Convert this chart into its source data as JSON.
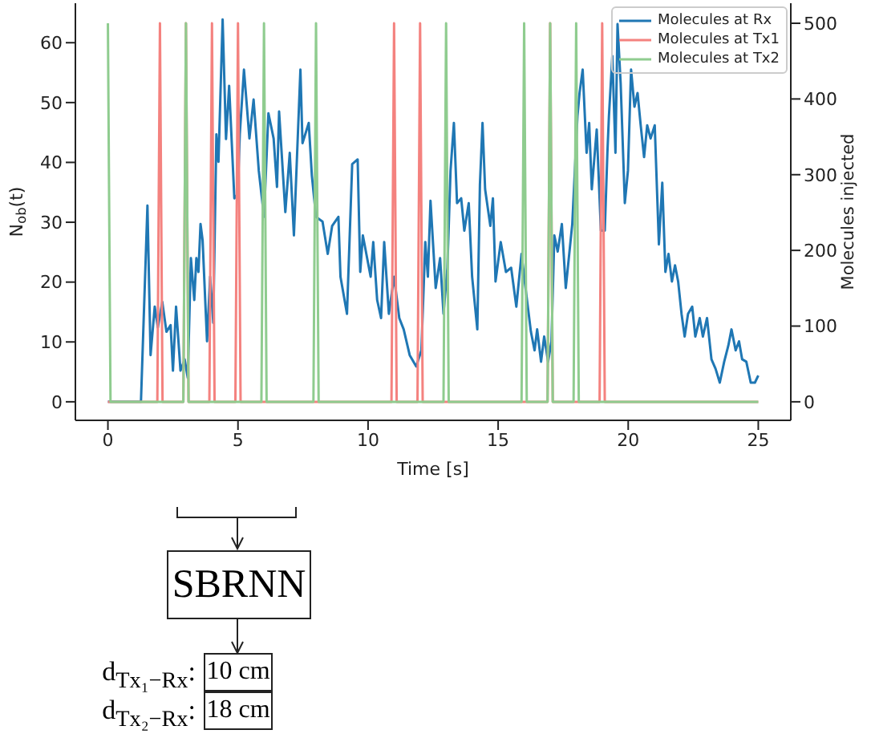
{
  "chart_data": {
    "type": "line",
    "xlabel": "Time [s]",
    "ylabel": "N$_{ob}$(t)",
    "y2label": "Molecules injected",
    "xlim": [
      -1.25,
      26.25
    ],
    "xticks": [
      0,
      5,
      10,
      15,
      20,
      25
    ],
    "ylim": [
      -3.1,
      66.6
    ],
    "yticks": [
      0,
      10,
      20,
      30,
      40,
      50,
      60
    ],
    "y2lim": [
      -24.5,
      526.5
    ],
    "y2ticks": [
      0,
      100,
      200,
      300,
      400,
      500
    ],
    "grid": false,
    "legend": "top right",
    "marker": "none",
    "line_style": "solid",
    "series": [
      {
        "name": "Molecules at Rx",
        "color": "#1f77b4",
        "x": [
          0,
          1.27,
          1.52,
          1.64,
          1.8,
          1.92,
          2.09,
          2.25,
          2.41,
          2.5,
          2.62,
          2.79,
          2.95,
          3.07,
          3.19,
          3.32,
          3.4,
          3.48,
          3.56,
          3.64,
          3.81,
          3.93,
          4.05,
          4.17,
          4.25,
          4.41,
          4.54,
          4.66,
          4.86,
          4.99,
          5.07,
          5.23,
          5.44,
          5.6,
          5.8,
          6.0,
          6.17,
          6.37,
          6.5,
          6.58,
          6.82,
          6.99,
          7.15,
          7.4,
          7.48,
          7.72,
          7.84,
          8.0,
          8.25,
          8.45,
          8.62,
          8.86,
          8.94,
          9.19,
          9.39,
          9.6,
          9.7,
          9.8,
          10.1,
          10.2,
          10.35,
          10.5,
          10.62,
          10.8,
          11.0,
          11.2,
          11.37,
          11.6,
          11.85,
          12.05,
          12.2,
          12.3,
          12.4,
          12.6,
          12.77,
          12.9,
          13.05,
          13.17,
          13.3,
          13.42,
          13.58,
          13.7,
          13.87,
          14.0,
          14.2,
          14.3,
          14.4,
          14.5,
          14.7,
          14.8,
          14.9,
          15.1,
          15.3,
          15.5,
          15.7,
          15.9,
          16.0,
          16.26,
          16.4,
          16.5,
          16.65,
          16.77,
          16.92,
          17.05,
          17.16,
          17.29,
          17.45,
          17.6,
          17.85,
          18.05,
          18.13,
          18.25,
          18.4,
          18.5,
          18.6,
          18.79,
          18.95,
          19.1,
          19.2,
          19.26,
          19.39,
          19.51,
          19.59,
          19.71,
          19.87,
          19.99,
          20.11,
          20.24,
          20.36,
          20.48,
          20.61,
          20.73,
          20.86,
          21.02,
          21.18,
          21.31,
          21.43,
          21.55,
          21.68,
          21.8,
          21.92,
          22.05,
          22.17,
          22.3,
          22.46,
          22.58,
          22.75,
          22.87,
          23.03,
          23.2,
          23.36,
          23.52,
          23.69,
          23.85,
          23.97,
          24.13,
          24.26,
          24.38,
          24.54,
          24.71,
          24.87,
          25.0
        ],
        "values": [
          0,
          0,
          32.8,
          7.8,
          15.9,
          12.4,
          16.7,
          11.7,
          12.8,
          5.2,
          15.9,
          5.2,
          7.1,
          4.0,
          24,
          17,
          24,
          21.7,
          29.7,
          27,
          10.1,
          20.9,
          13.2,
          44.7,
          40.1,
          63.9,
          43.9,
          52.8,
          34,
          34.7,
          44.7,
          55.5,
          44,
          50.5,
          38.6,
          30.9,
          48.2,
          44,
          35.9,
          48.5,
          31.7,
          41.6,
          27.8,
          55.5,
          43.2,
          46.6,
          37.8,
          30.9,
          30.1,
          24.7,
          29.4,
          30.9,
          20.9,
          14.7,
          39.7,
          40.5,
          21.7,
          27.8,
          20.9,
          26.7,
          17,
          14,
          26.7,
          14.7,
          20.9,
          14,
          12.1,
          7.8,
          5.9,
          8.6,
          26.7,
          20.9,
          33.6,
          19,
          24,
          14.7,
          22.4,
          38.6,
          46.6,
          33.2,
          34,
          28.6,
          33.2,
          20.9,
          12.1,
          36.3,
          46.6,
          35.5,
          29.4,
          34,
          20.1,
          26.7,
          21.7,
          22.4,
          15.9,
          24.7,
          20.9,
          11.7,
          8.6,
          12.1,
          6.7,
          10.9,
          6.7,
          10.1,
          27.8,
          25.1,
          29.7,
          19,
          29.7,
          47.8,
          51.6,
          55.5,
          41.6,
          46.6,
          35.5,
          45.5,
          28.6,
          28.6,
          41.6,
          47.8,
          57.8,
          41.6,
          63.1,
          53.2,
          33.2,
          38.6,
          55.5,
          49.3,
          51.6,
          46.2,
          40.9,
          46.2,
          44,
          46.2,
          26.3,
          36.6,
          21.7,
          24.7,
          20.1,
          22.8,
          20.1,
          14.7,
          10.9,
          14.7,
          15.9,
          10.9,
          14,
          10.9,
          14,
          7.1,
          5.5,
          3.2,
          6.7,
          9.4,
          12.1,
          8.6,
          10.1,
          7.1,
          6.7,
          3.2,
          3.2,
          4.4
        ]
      },
      {
        "name": "Molecules at Tx1",
        "color": "#f4827f",
        "axis": "y2",
        "x": [
          0,
          1.9,
          2,
          2.1,
          2.9,
          3,
          3.1,
          3.9,
          4,
          4.1,
          4.9,
          5,
          5.1,
          10.9,
          11,
          11.1,
          11.9,
          12,
          12.1,
          16.9,
          17,
          17.1,
          18.9,
          19,
          19.1,
          25
        ],
        "values": [
          0,
          0,
          500,
          0,
          0,
          500,
          0,
          0,
          500,
          0,
          0,
          500,
          0,
          0,
          500,
          0,
          0,
          500,
          0,
          0,
          500,
          0,
          0,
          500,
          0,
          0
        ]
      },
      {
        "name": "Molecules at Tx2",
        "color": "#8fcc8f",
        "axis": "y2",
        "x": [
          0,
          0.1,
          2.9,
          3,
          3.1,
          5.9,
          6,
          6.1,
          7.9,
          8,
          8.1,
          12.9,
          13,
          13.1,
          15.9,
          16,
          16.1,
          16.9,
          17,
          17.1,
          17.9,
          18,
          18.1,
          25
        ],
        "values": [
          500,
          0,
          0,
          500,
          0,
          0,
          500,
          0,
          0,
          500,
          0,
          0,
          500,
          0,
          0,
          500,
          0,
          0,
          500,
          0,
          0,
          500,
          0,
          0
        ]
      }
    ],
    "annotations": [
      "SBRNN",
      "d$_{Tx₁−Rx}$:",
      "10 cm",
      "d$_{Tx₂−Rx}$:",
      "18 cm"
    ]
  }
}
